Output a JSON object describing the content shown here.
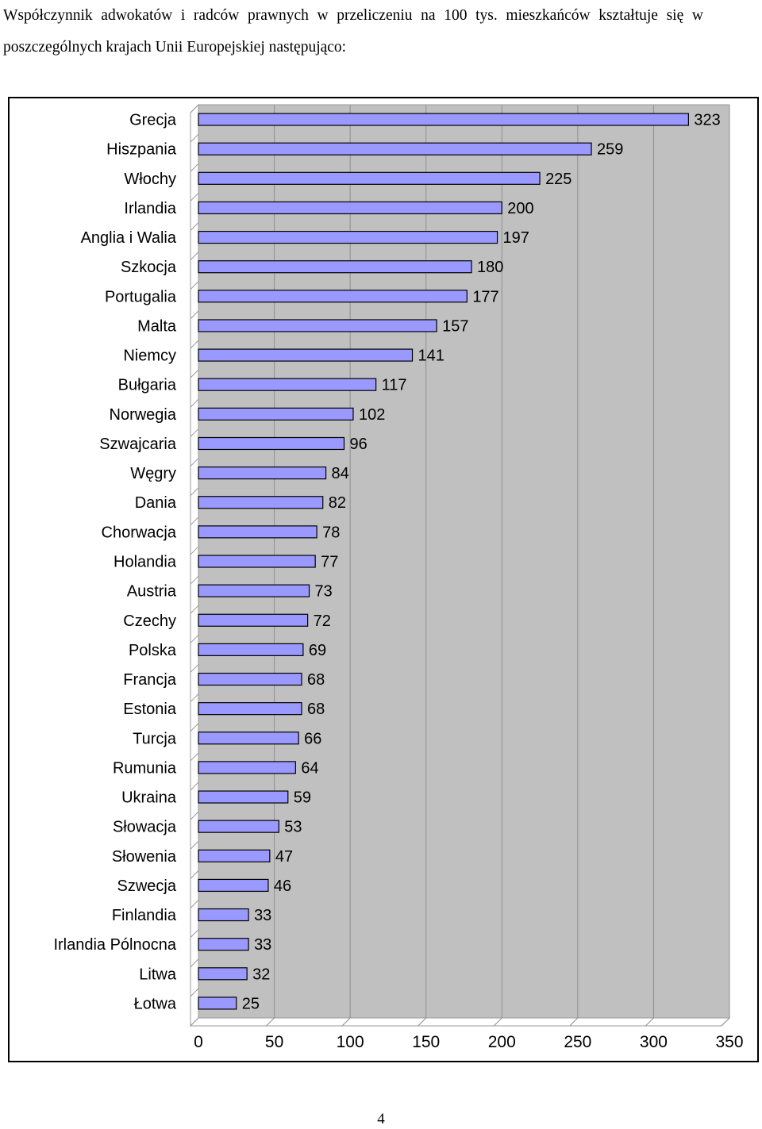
{
  "document": {
    "intro_text": "Współczynnik adwokatów i radców prawnych w przeliczeniu na 100 tys. mieszkańców kształtuje się w poszczególnych krajach Unii Europejskiej następująco:",
    "page_number": "4"
  },
  "colors": {
    "plot_background": "#c0c0c0",
    "bar_fill": "#9999ff",
    "bar_stroke": "#000000",
    "grid": "#8f8f8f"
  },
  "chart_data": {
    "type": "bar",
    "orientation": "horizontal",
    "title": "",
    "xlabel": "",
    "ylabel": "",
    "xlim": [
      0,
      350
    ],
    "x_ticks": [
      0,
      50,
      100,
      150,
      200,
      250,
      300,
      350
    ],
    "grid": "vertical",
    "legend": "none",
    "categories": [
      "Grecja",
      "Hiszpania",
      "Włochy",
      "Irlandia",
      "Anglia i Walia",
      "Szkocja",
      "Portugalia",
      "Malta",
      "Niemcy",
      "Bułgaria",
      "Norwegia",
      "Szwajcaria",
      "Węgry",
      "Dania",
      "Chorwacja",
      "Holandia",
      "Austria",
      "Czechy",
      "Polska",
      "Francja",
      "Estonia",
      "Turcja",
      "Rumunia",
      "Ukraina",
      "Słowacja",
      "Słowenia",
      "Szwecja",
      "Finlandia",
      "Irlandia Pólnocna",
      "Litwa",
      "Łotwa"
    ],
    "values": [
      323,
      259,
      225,
      200,
      197,
      180,
      177,
      157,
      141,
      117,
      102,
      96,
      84,
      82,
      78,
      77,
      73,
      72,
      69,
      68,
      68,
      66,
      64,
      59,
      53,
      47,
      46,
      33,
      33,
      32,
      25
    ]
  }
}
